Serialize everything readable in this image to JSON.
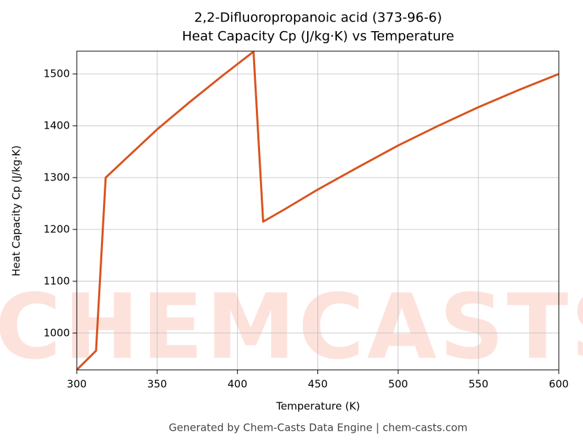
{
  "chart_data": {
    "type": "line",
    "title": "2,2-Difluoropropanoic acid (373-96-6)",
    "subtitle": "Heat Capacity Cp (J/kg·K) vs Temperature",
    "x_label": "Temperature (K)",
    "y_label": "Heat Capacity Cp (J/kg·K)",
    "footer": "Generated by Chem-Casts Data Engine | chem-casts.com",
    "watermark": "CHEMCASTS",
    "xlim": [
      300,
      600
    ],
    "xticks": [
      300,
      350,
      400,
      450,
      500,
      550,
      600
    ],
    "ylim": [
      929,
      1544
    ],
    "yticks": [
      1000,
      1100,
      1200,
      1300,
      1400,
      1500
    ],
    "grid": true,
    "series": [
      {
        "name": "Cp",
        "color": "#d9531e",
        "x": [
          300,
          312,
          318,
          330,
          350,
          370,
          390,
          410,
          416,
          430,
          450,
          475,
          500,
          525,
          550,
          575,
          600
        ],
        "values": [
          929,
          966,
          1300,
          1335,
          1393,
          1445,
          1495,
          1543,
          1215,
          1240,
          1277,
          1320,
          1362,
          1400,
          1436,
          1469,
          1500
        ]
      }
    ]
  }
}
